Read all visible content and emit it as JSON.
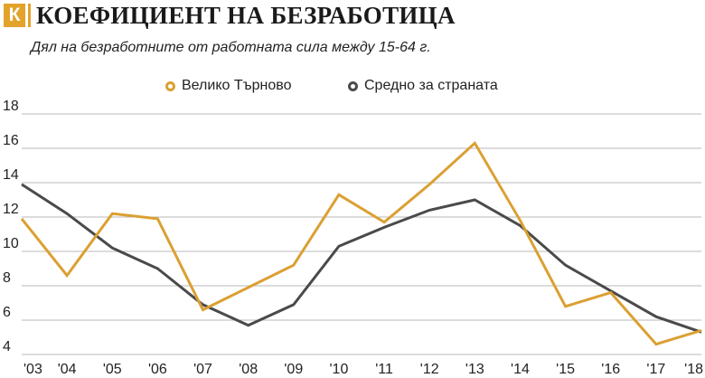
{
  "header": {
    "brand_letter": "К",
    "title": "КОЕФИЦИЕНТ НА БЕЗРАБОТИЦА",
    "subtitle": "Дял на безработните от работната сила между 15-64 г."
  },
  "colors": {
    "accent": "#e3a22b",
    "series_veliko": "#dba032",
    "series_avg": "#4a4a4a",
    "grid": "#b8b8b8"
  },
  "chart_data": {
    "type": "line",
    "x": [
      "'03",
      "'04",
      "'05",
      "'06",
      "'07",
      "'08",
      "'09",
      "'10",
      "'11",
      "'12",
      "'13",
      "'14",
      "'15",
      "'16",
      "'17",
      "'18"
    ],
    "series": [
      {
        "name": "Велико Търново",
        "color": "#dba032",
        "values": [
          11.9,
          8.6,
          12.2,
          11.9,
          6.6,
          7.9,
          9.2,
          13.3,
          11.7,
          13.9,
          16.3,
          11.8,
          6.8,
          7.6,
          4.6,
          5.4
        ]
      },
      {
        "name": "Средно за страната",
        "color": "#4a4a4a",
        "values": [
          13.9,
          12.2,
          10.2,
          9.0,
          6.9,
          5.7,
          6.9,
          10.3,
          11.4,
          12.4,
          13.0,
          11.5,
          9.2,
          7.7,
          6.2,
          5.3
        ]
      }
    ],
    "yticks": [
      "18",
      "16",
      "14",
      "12",
      "10",
      "8",
      "6",
      "4"
    ],
    "ylim": [
      4,
      18
    ],
    "grid": true,
    "legend_position": "top-center"
  }
}
